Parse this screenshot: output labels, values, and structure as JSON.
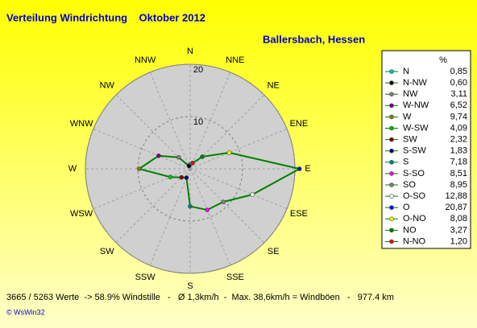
{
  "chart_data": {
    "type": "radar",
    "title": "Verteilung Windrichtung    Oktober 2012",
    "subtitle": "Ballersbach, Hessen",
    "categories": [
      "N",
      "NNE",
      "NE",
      "ENE",
      "E",
      "ESE",
      "SE",
      "SSE",
      "S",
      "SSW",
      "SW",
      "WSW",
      "W",
      "WNW",
      "NW",
      "NNW"
    ],
    "rlim": [
      0,
      20
    ],
    "rticks": [
      10,
      20
    ],
    "line_color": "#008000",
    "legend_header": "%",
    "series": [
      {
        "name": "N",
        "color": "#00c0c0",
        "value": 0.85,
        "value_label": "0,85"
      },
      {
        "name": "N-NW",
        "color": "#000000",
        "value": 0.6,
        "value_label": "0,60"
      },
      {
        "name": "NW",
        "color": "#808080",
        "value": 3.11,
        "value_label": "3,11"
      },
      {
        "name": "W-NW",
        "color": "#800080",
        "value": 6.52,
        "value_label": "6,52"
      },
      {
        "name": "W",
        "color": "#808000",
        "value": 9.74,
        "value_label": "9,74"
      },
      {
        "name": "W-SW",
        "color": "#00c000",
        "value": 4.09,
        "value_label": "4,09"
      },
      {
        "name": "SW",
        "color": "#800000",
        "value": 2.32,
        "value_label": "2,32"
      },
      {
        "name": "S-SW",
        "color": "#000080",
        "value": 1.83,
        "value_label": "1,83"
      },
      {
        "name": "S",
        "color": "#008080",
        "value": 7.18,
        "value_label": "7,18"
      },
      {
        "name": "S-SO",
        "color": "#ff00ff",
        "value": 8.51,
        "value_label": "8,51"
      },
      {
        "name": "SO",
        "color": "#808080",
        "value": 8.95,
        "value_label": "8,95"
      },
      {
        "name": "O-SO",
        "color": "#ffffff",
        "value": 12.88,
        "value_label": "12,88"
      },
      {
        "name": "O",
        "color": "#0000ff",
        "value": 20.87,
        "value_label": "20,87"
      },
      {
        "name": "O-NO",
        "color": "#ffff00",
        "value": 8.08,
        "value_label": "8,08"
      },
      {
        "name": "NO",
        "color": "#008000",
        "value": 3.27,
        "value_label": "3,27"
      },
      {
        "name": "N-NO",
        "color": "#ff0000",
        "value": 1.2,
        "value_label": "1,20"
      }
    ],
    "footer": "3665 / 5263 Werte  -> 58.9% Windstille   -   Ø 1,3km/h  -  Max. 38,6km/h = Windböen   -   977.4 km",
    "credit": "© WsWin32"
  }
}
